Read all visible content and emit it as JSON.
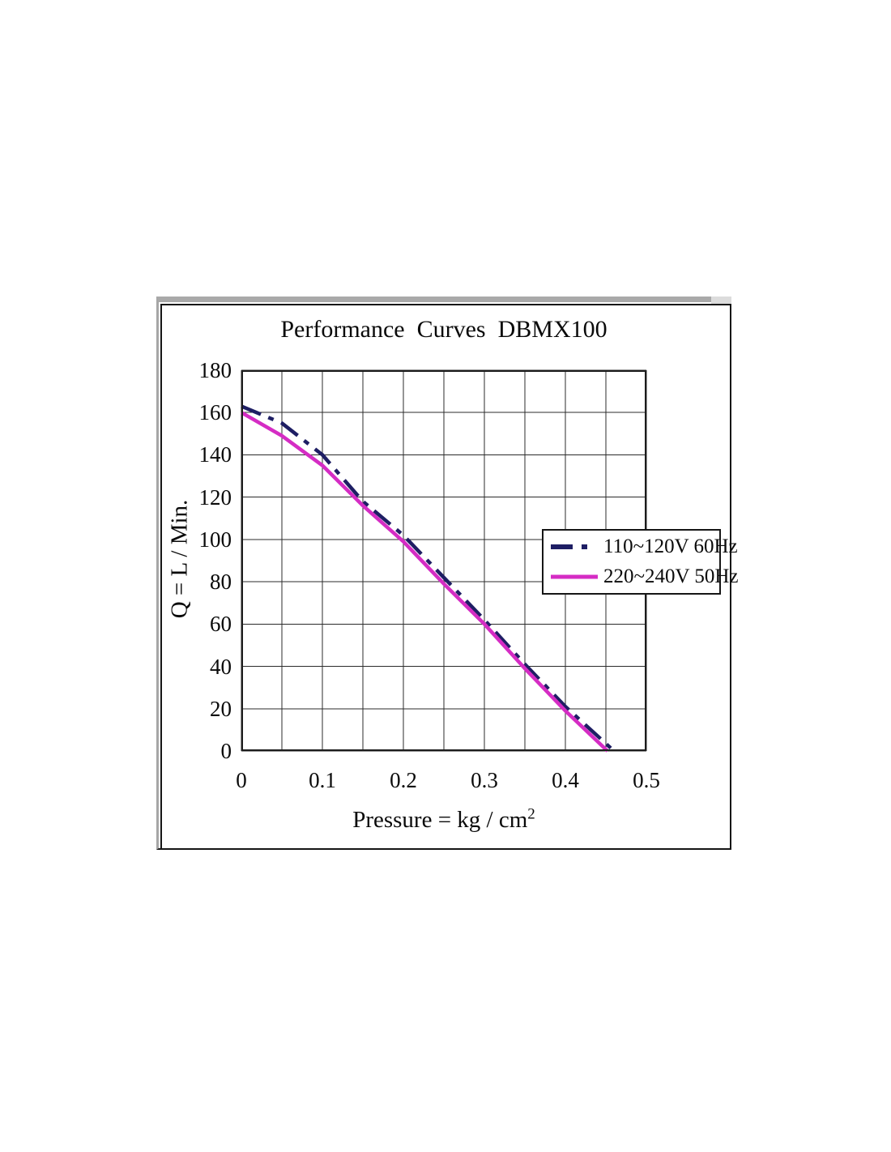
{
  "chart_data": {
    "type": "line",
    "title": "Performance  Curves  DBMX100",
    "xlabel_base": "Pressure = kg / cm",
    "xlabel_exponent": "2",
    "ylabel": "Q = L / Min.",
    "xlim": [
      0,
      0.5
    ],
    "ylim": [
      0,
      180
    ],
    "x_ticks": [
      "0",
      "0.1",
      "0.2",
      "0.3",
      "0.4",
      "0.5"
    ],
    "y_ticks": [
      "180",
      "160",
      "140",
      "120",
      "100",
      "80",
      "60",
      "40",
      "20",
      "0"
    ],
    "x_minor_grid_step": 0.05,
    "y_grid_step": 20,
    "grid": true,
    "legend_position": "upper-right-inside",
    "series": [
      {
        "name": "110~120V 60Hz",
        "color": "#1e1e64",
        "line_style": "dashed",
        "points": [
          [
            0,
            163
          ],
          [
            0.05,
            155
          ],
          [
            0.1,
            140
          ],
          [
            0.15,
            118
          ],
          [
            0.2,
            102
          ],
          [
            0.25,
            82
          ],
          [
            0.3,
            62
          ],
          [
            0.35,
            41
          ],
          [
            0.4,
            21
          ],
          [
            0.46,
            0
          ]
        ]
      },
      {
        "name": "220~240V 50Hz",
        "color": "#d52cc4",
        "line_style": "solid",
        "points": [
          [
            0,
            160
          ],
          [
            0.05,
            149
          ],
          [
            0.1,
            135
          ],
          [
            0.15,
            116
          ],
          [
            0.2,
            99
          ],
          [
            0.25,
            79
          ],
          [
            0.3,
            60
          ],
          [
            0.35,
            39
          ],
          [
            0.4,
            19
          ],
          [
            0.452,
            0
          ]
        ]
      }
    ]
  },
  "frame": {
    "gray_border_color": "#a9a9a9",
    "black_border_color": "#161616",
    "background": "#ffffff"
  }
}
